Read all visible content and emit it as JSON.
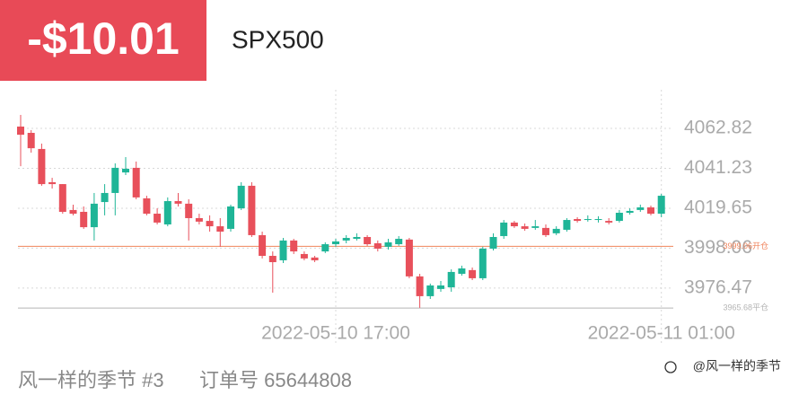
{
  "header": {
    "pnl": "-$10.01",
    "symbol": "SPX500"
  },
  "footer": {
    "user": "风一样的季节 #3",
    "order": "订单号 65644808",
    "watermark": "@风一样的季节"
  },
  "chart_data": {
    "type": "candlestick",
    "categories": [
      null,
      null,
      null,
      null,
      null,
      null,
      null,
      null,
      null,
      null,
      null,
      null,
      null,
      null,
      null,
      null,
      null,
      null,
      null,
      null,
      null,
      null,
      null,
      null,
      null,
      null,
      null,
      null,
      null,
      null,
      "2022-05-10 17:00",
      null,
      null,
      null,
      null,
      null,
      null,
      null,
      null,
      null,
      null,
      null,
      null,
      null,
      null,
      null,
      null,
      null,
      null,
      null,
      null,
      null,
      null,
      null,
      null,
      null,
      null,
      null,
      null,
      null,
      null,
      "2022-05-11 01:00"
    ],
    "open": [
      4063.8,
      4060.4,
      4051.7,
      4033.7,
      4032.7,
      4018.7,
      4017.7,
      4009.4,
      4023.0,
      4027.9,
      4039.0,
      4041.5,
      4025.0,
      4016.7,
      4010.9,
      4023.5,
      4022.1,
      4014.3,
      4012.8,
      4009.9,
      4008.5,
      4019.6,
      4031.8,
      4005.1,
      3993.9,
      3991.5,
      4002.2,
      3994.9,
      3993.0,
      3996.3,
      4000.2,
      4002.2,
      4003.1,
      4004.1,
      4000.7,
      3998.8,
      4000.2,
      4002.7,
      3982.8,
      3972.1,
      3976.0,
      3976.9,
      3984.2,
      3986.2,
      3981.8,
      3997.8,
      4004.6,
      4011.9,
      4009.9,
      4009.0,
      4009.0,
      4006.1,
      4008.0,
      4013.8,
      4013.3,
      4013.3,
      4012.8,
      4012.8,
      4017.2,
      4018.7,
      4020.1,
      4016.7
    ],
    "high": [
      4070.1,
      4061.9,
      4054.6,
      4036.1,
      4032.7,
      4021.6,
      4020.6,
      4027.9,
      4032.7,
      4043.9,
      4047.3,
      4044.9,
      4026.4,
      4019.6,
      4025.5,
      4027.9,
      4024.5,
      4016.7,
      4015.8,
      4014.3,
      4021.6,
      4033.7,
      4033.7,
      4007.0,
      3996.3,
      4003.6,
      4003.1,
      3996.3,
      3993.9,
      4001.2,
      4003.1,
      4005.1,
      4006.1,
      4005.1,
      4002.2,
      4003.1,
      4004.6,
      4003.6,
      3984.2,
      3978.9,
      3980.3,
      3986.6,
      3988.6,
      3987.6,
      3998.8,
      4006.1,
      4013.3,
      4012.8,
      4011.4,
      4013.3,
      4010.9,
      4009.9,
      4014.3,
      4014.8,
      4015.8,
      4015.3,
      4014.3,
      4018.7,
      4019.6,
      4021.6,
      4021.1,
      4027.4
    ],
    "low": [
      4042.4,
      4049.7,
      4031.8,
      4030.3,
      4016.7,
      4015.8,
      4008.5,
      4002.2,
      4015.8,
      4015.8,
      4037.6,
      4024.5,
      4015.8,
      4010.9,
      4009.9,
      4020.6,
      4002.2,
      4010.9,
      4007.0,
      3998.8,
      4007.0,
      4018.7,
      4004.1,
      3992.5,
      3974.0,
      3990.0,
      3994.9,
      3991.5,
      3990.5,
      3995.4,
      3998.8,
      4000.7,
      4002.2,
      3999.3,
      3996.3,
      3997.3,
      3999.3,
      3981.8,
      3965.8,
      3970.6,
      3974.5,
      3974.5,
      3983.2,
      3980.8,
      3980.8,
      3996.8,
      4003.1,
      4009.0,
      4007.5,
      4008.0,
      4004.1,
      4005.1,
      4007.0,
      4011.9,
      4012.4,
      4011.9,
      4010.9,
      4011.9,
      4016.2,
      4017.7,
      4015.8,
      4014.8
    ],
    "close": [
      4059.4,
      4052.1,
      4032.7,
      4032.7,
      4017.7,
      4016.7,
      4009.4,
      4022.1,
      4027.9,
      4041.5,
      4041.0,
      4025.5,
      4016.7,
      4011.9,
      4023.5,
      4022.1,
      4014.3,
      4012.4,
      4009.9,
      4007.0,
      4020.6,
      4031.8,
      4005.1,
      3993.9,
      3990.5,
      4002.2,
      3996.3,
      3992.5,
      3991.5,
      4000.2,
      4001.7,
      4003.6,
      4004.1,
      4000.2,
      3997.8,
      4001.2,
      4003.1,
      3982.8,
      3972.1,
      3977.9,
      3977.9,
      3985.2,
      3987.1,
      3981.8,
      3997.8,
      4004.1,
      4011.9,
      4009.9,
      4008.5,
      4009.9,
      4005.1,
      4008.5,
      4013.3,
      4012.8,
      4013.8,
      4013.8,
      4011.9,
      4017.2,
      4018.2,
      4020.1,
      4016.7,
      4026.4
    ],
    "up_color": "#1fb597",
    "down_color": "#e8505b",
    "ylim": [
      3957.5,
      4083.7
    ],
    "yticks": [
      4062.82,
      4041.23,
      4019.65,
      3998.06,
      3976.47
    ],
    "grid": true,
    "reference_lines": [
      {
        "value": 3999.06,
        "label": "3999.06开仓",
        "color": "#f0845c"
      },
      {
        "value": 3965.68,
        "label": "3965.68平仓",
        "color": "#b4b4b4"
      }
    ]
  }
}
